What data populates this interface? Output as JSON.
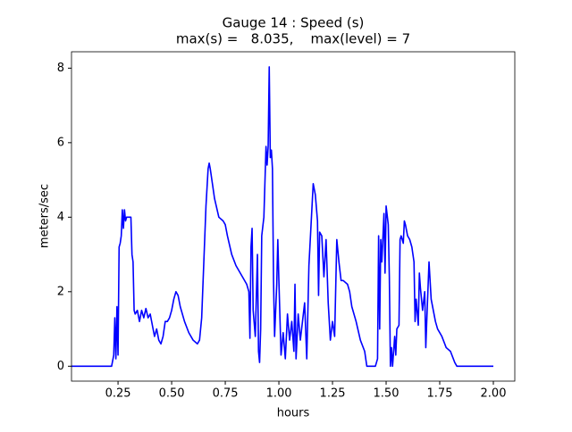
{
  "chart_data": {
    "type": "line",
    "title": "Gauge 14 : Speed (s)",
    "subtitle": "max(s) =   8.035,    max(level) = 7",
    "xlabel": "hours",
    "ylabel": "meters/sec",
    "color": "#0000ff",
    "x": [
      0.033,
      0.22,
      0.23,
      0.235,
      0.24,
      0.245,
      0.25,
      0.255,
      0.26,
      0.265,
      0.27,
      0.275,
      0.28,
      0.285,
      0.29,
      0.31,
      0.315,
      0.32,
      0.325,
      0.33,
      0.34,
      0.35,
      0.36,
      0.37,
      0.38,
      0.39,
      0.4,
      0.41,
      0.42,
      0.43,
      0.44,
      0.45,
      0.46,
      0.47,
      0.48,
      0.49,
      0.5,
      0.51,
      0.52,
      0.53,
      0.54,
      0.56,
      0.58,
      0.6,
      0.62,
      0.63,
      0.64,
      0.65,
      0.66,
      0.67,
      0.675,
      0.68,
      0.69,
      0.7,
      0.72,
      0.74,
      0.75,
      0.76,
      0.78,
      0.8,
      0.83,
      0.85,
      0.86,
      0.865,
      0.87,
      0.875,
      0.88,
      0.89,
      0.9,
      0.905,
      0.91,
      0.915,
      0.92,
      0.93,
      0.94,
      0.945,
      0.95,
      0.955,
      0.96,
      0.965,
      0.97,
      0.975,
      0.98,
      0.99,
      0.995,
      1.0,
      1.01,
      1.02,
      1.03,
      1.04,
      1.05,
      1.06,
      1.07,
      1.075,
      1.08,
      1.09,
      1.1,
      1.11,
      1.12,
      1.13,
      1.14,
      1.15,
      1.16,
      1.17,
      1.18,
      1.185,
      1.19,
      1.2,
      1.21,
      1.22,
      1.23,
      1.24,
      1.25,
      1.26,
      1.27,
      1.28,
      1.29,
      1.3,
      1.32,
      1.33,
      1.34,
      1.36,
      1.38,
      1.4,
      1.41,
      1.45,
      1.46,
      1.465,
      1.47,
      1.475,
      1.48,
      1.49,
      1.495,
      1.5,
      1.51,
      1.515,
      1.52,
      1.525,
      1.53,
      1.54,
      1.545,
      1.55,
      1.56,
      1.565,
      1.57,
      1.58,
      1.585,
      1.59,
      1.6,
      1.61,
      1.62,
      1.63,
      1.635,
      1.64,
      1.65,
      1.655,
      1.66,
      1.67,
      1.68,
      1.685,
      1.69,
      1.7,
      1.71,
      1.72,
      1.73,
      1.74,
      1.76,
      1.78,
      1.8,
      1.82,
      1.83,
      2.0
    ],
    "values": [
      0,
      0,
      0.3,
      1.3,
      0.2,
      1.6,
      0.3,
      3.2,
      3.3,
      3.5,
      4.2,
      3.7,
      4.2,
      3.9,
      4.0,
      4.0,
      3.0,
      2.8,
      1.5,
      1.4,
      1.5,
      1.2,
      1.5,
      1.3,
      1.55,
      1.3,
      1.4,
      1.1,
      0.8,
      1.0,
      0.7,
      0.6,
      0.8,
      1.2,
      1.2,
      1.3,
      1.5,
      1.8,
      2.0,
      1.9,
      1.6,
      1.2,
      0.9,
      0.7,
      0.6,
      0.7,
      1.3,
      2.8,
      4.3,
      5.3,
      5.45,
      5.3,
      4.9,
      4.5,
      4.0,
      3.9,
      3.8,
      3.5,
      3.0,
      2.7,
      2.4,
      2.2,
      2.0,
      0.75,
      3.2,
      3.7,
      1.5,
      0.8,
      3.0,
      0.4,
      0.1,
      1.0,
      3.5,
      4.0,
      5.9,
      5.4,
      5.9,
      8.035,
      5.6,
      5.8,
      5.3,
      2.3,
      0.8,
      2.2,
      3.4,
      2.3,
      0.3,
      0.9,
      0.2,
      1.4,
      0.7,
      1.2,
      0.4,
      2.2,
      0.2,
      1.4,
      0.7,
      1.2,
      1.7,
      0.2,
      2.7,
      3.8,
      4.9,
      4.6,
      3.9,
      1.9,
      3.6,
      3.5,
      2.4,
      3.4,
      1.7,
      0.7,
      1.2,
      0.8,
      3.4,
      2.8,
      2.3,
      2.3,
      2.2,
      2.0,
      1.6,
      1.2,
      0.7,
      0.4,
      0,
      0,
      0.2,
      3.5,
      1.0,
      3.4,
      2.8,
      4.1,
      2.5,
      4.3,
      3.8,
      2.4,
      0.0,
      0.5,
      0.0,
      0.8,
      0.3,
      1.0,
      1.1,
      3.4,
      3.5,
      3.3,
      3.9,
      3.8,
      3.5,
      3.4,
      3.2,
      2.8,
      1.2,
      1.8,
      1.1,
      2.5,
      2.1,
      1.5,
      2.0,
      0.5,
      1.3,
      2.8,
      1.8,
      1.5,
      1.2,
      1.0,
      0.8,
      0.5,
      0.4,
      0.1,
      0,
      0
    ],
    "xlim": [
      0.033,
      2.1
    ],
    "ylim": [
      -0.4,
      8.44
    ],
    "xticks": [
      {
        "value": 0.25,
        "label": "0.25"
      },
      {
        "value": 0.5,
        "label": "0.50"
      },
      {
        "value": 0.75,
        "label": "0.75"
      },
      {
        "value": 1.0,
        "label": "1.00"
      },
      {
        "value": 1.25,
        "label": "1.25"
      },
      {
        "value": 1.5,
        "label": "1.50"
      },
      {
        "value": 1.75,
        "label": "1.75"
      },
      {
        "value": 2.0,
        "label": "2.00"
      }
    ],
    "yticks": [
      0,
      2,
      4,
      6,
      8
    ]
  }
}
